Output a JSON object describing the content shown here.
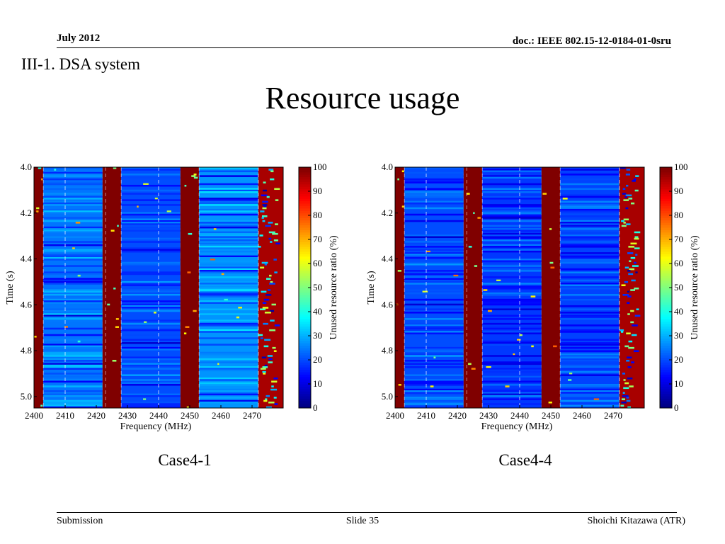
{
  "header": {
    "date": "July 2012",
    "doc": "doc.: IEEE 802.15-12-0184-01-0sru"
  },
  "section": "III-1. DSA system",
  "title": "Resource usage",
  "footer": {
    "left": "Submission",
    "center": "Slide 35",
    "right": "Shoichi Kitazawa (ATR)"
  },
  "chart_data": [
    {
      "type": "heatmap",
      "caption": "Case4-1",
      "xlabel": "Frequency (MHz)",
      "ylabel": "Time (s)",
      "xlim": [
        2400,
        2480
      ],
      "ylim": [
        4.0,
        5.05
      ],
      "xticks": [
        "2400",
        "2410",
        "2420",
        "2430",
        "2440",
        "2450",
        "2460",
        "2470"
      ],
      "yticks": [
        "4.0",
        "4.2",
        "4.4",
        "4.6",
        "4.8",
        "5.0"
      ],
      "colorbar": {
        "label": "Unused resource ratio (%)",
        "range": [
          0,
          100
        ],
        "ticks": [
          "0",
          "10",
          "20",
          "30",
          "40",
          "50",
          "60",
          "70",
          "80",
          "90",
          "100"
        ]
      },
      "bands": [
        {
          "from": 2400,
          "to": 2403,
          "level": 100
        },
        {
          "from": 2403,
          "to": 2422,
          "level": 24
        },
        {
          "from": 2422,
          "to": 2428,
          "level": 100
        },
        {
          "from": 2428,
          "to": 2447,
          "level": 20
        },
        {
          "from": 2447,
          "to": 2453,
          "level": 100
        },
        {
          "from": 2453,
          "to": 2472,
          "level": 27
        },
        {
          "from": 2472,
          "to": 2480,
          "level": 96
        }
      ]
    },
    {
      "type": "heatmap",
      "caption": "Case4-4",
      "xlabel": "Frequency (MHz)",
      "ylabel": "Time (s)",
      "xlim": [
        2400,
        2480
      ],
      "ylim": [
        4.0,
        5.05
      ],
      "xticks": [
        "2400",
        "2410",
        "2420",
        "2430",
        "2440",
        "2450",
        "2460",
        "2470"
      ],
      "yticks": [
        "4.0",
        "4.2",
        "4.4",
        "4.6",
        "4.8",
        "5.0"
      ],
      "colorbar": {
        "label": "Unused resource ratio (%)",
        "range": [
          0,
          100
        ],
        "ticks": [
          "0",
          "10",
          "20",
          "30",
          "40",
          "50",
          "60",
          "70",
          "80",
          "90",
          "100"
        ]
      },
      "bands": [
        {
          "from": 2400,
          "to": 2403,
          "level": 100
        },
        {
          "from": 2403,
          "to": 2422,
          "level": 20
        },
        {
          "from": 2422,
          "to": 2428,
          "level": 100
        },
        {
          "from": 2428,
          "to": 2447,
          "level": 18
        },
        {
          "from": 2447,
          "to": 2453,
          "level": 100
        },
        {
          "from": 2453,
          "to": 2472,
          "level": 19
        },
        {
          "from": 2472,
          "to": 2480,
          "level": 96
        }
      ]
    }
  ]
}
